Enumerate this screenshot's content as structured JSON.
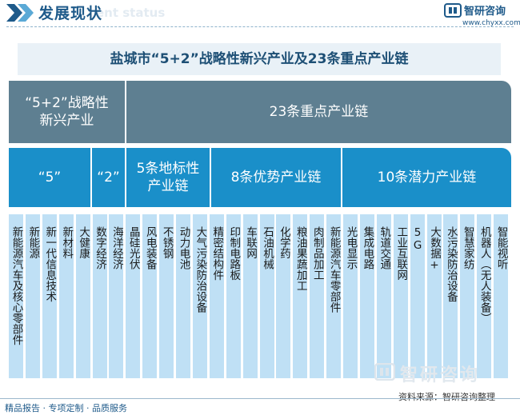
{
  "header": {
    "title": "发展现状",
    "subtitle_watermark": "ent status",
    "brand": "智研咨询",
    "url": "www.chyxx.com"
  },
  "chart_title": "盐城市“5+2”战略性新兴产业及23条重点产业链",
  "top_row": {
    "left": "“5+2”战略性新兴产业",
    "right": "23条重点产业链"
  },
  "mid_row": {
    "five": "“5”",
    "two": "“2”",
    "landmark": "5条地标性产业链",
    "advantage": "8条优势产业链",
    "potential": "10条潜力产业链"
  },
  "columns": [
    "新能源汽车及核心零部件",
    "新能源",
    "新一代信息技术",
    "新材料",
    "大健康",
    "数字经济",
    "海洋经济",
    "晶硅光伏",
    "风电装备",
    "不锈钢",
    "动力电池",
    "大气污染防治设备",
    "精密结构件",
    "印制电路板",
    "车联网",
    "石油机械",
    "化学药",
    "粮油果蔬加工",
    "肉制品加工",
    "新能源汽车零部件",
    "光电显示",
    "集成电路",
    "轨道交通",
    "工业互联网",
    "5G",
    "大数据+",
    "水污染防治设备",
    "智慧家纺",
    "机器人（无人装备）",
    "智能视听"
  ],
  "watermark": "智研咨询",
  "source": "资料来源：智研咨询整理",
  "footer": "精品报告 · 专项定制 · 品质服务",
  "colors": {
    "gray": "#5e7f91",
    "blue": "#1a8fc9",
    "light_blue": "#bfe0f5",
    "title_bg": "#e9f1f7",
    "brand": "#1e5a8a"
  }
}
